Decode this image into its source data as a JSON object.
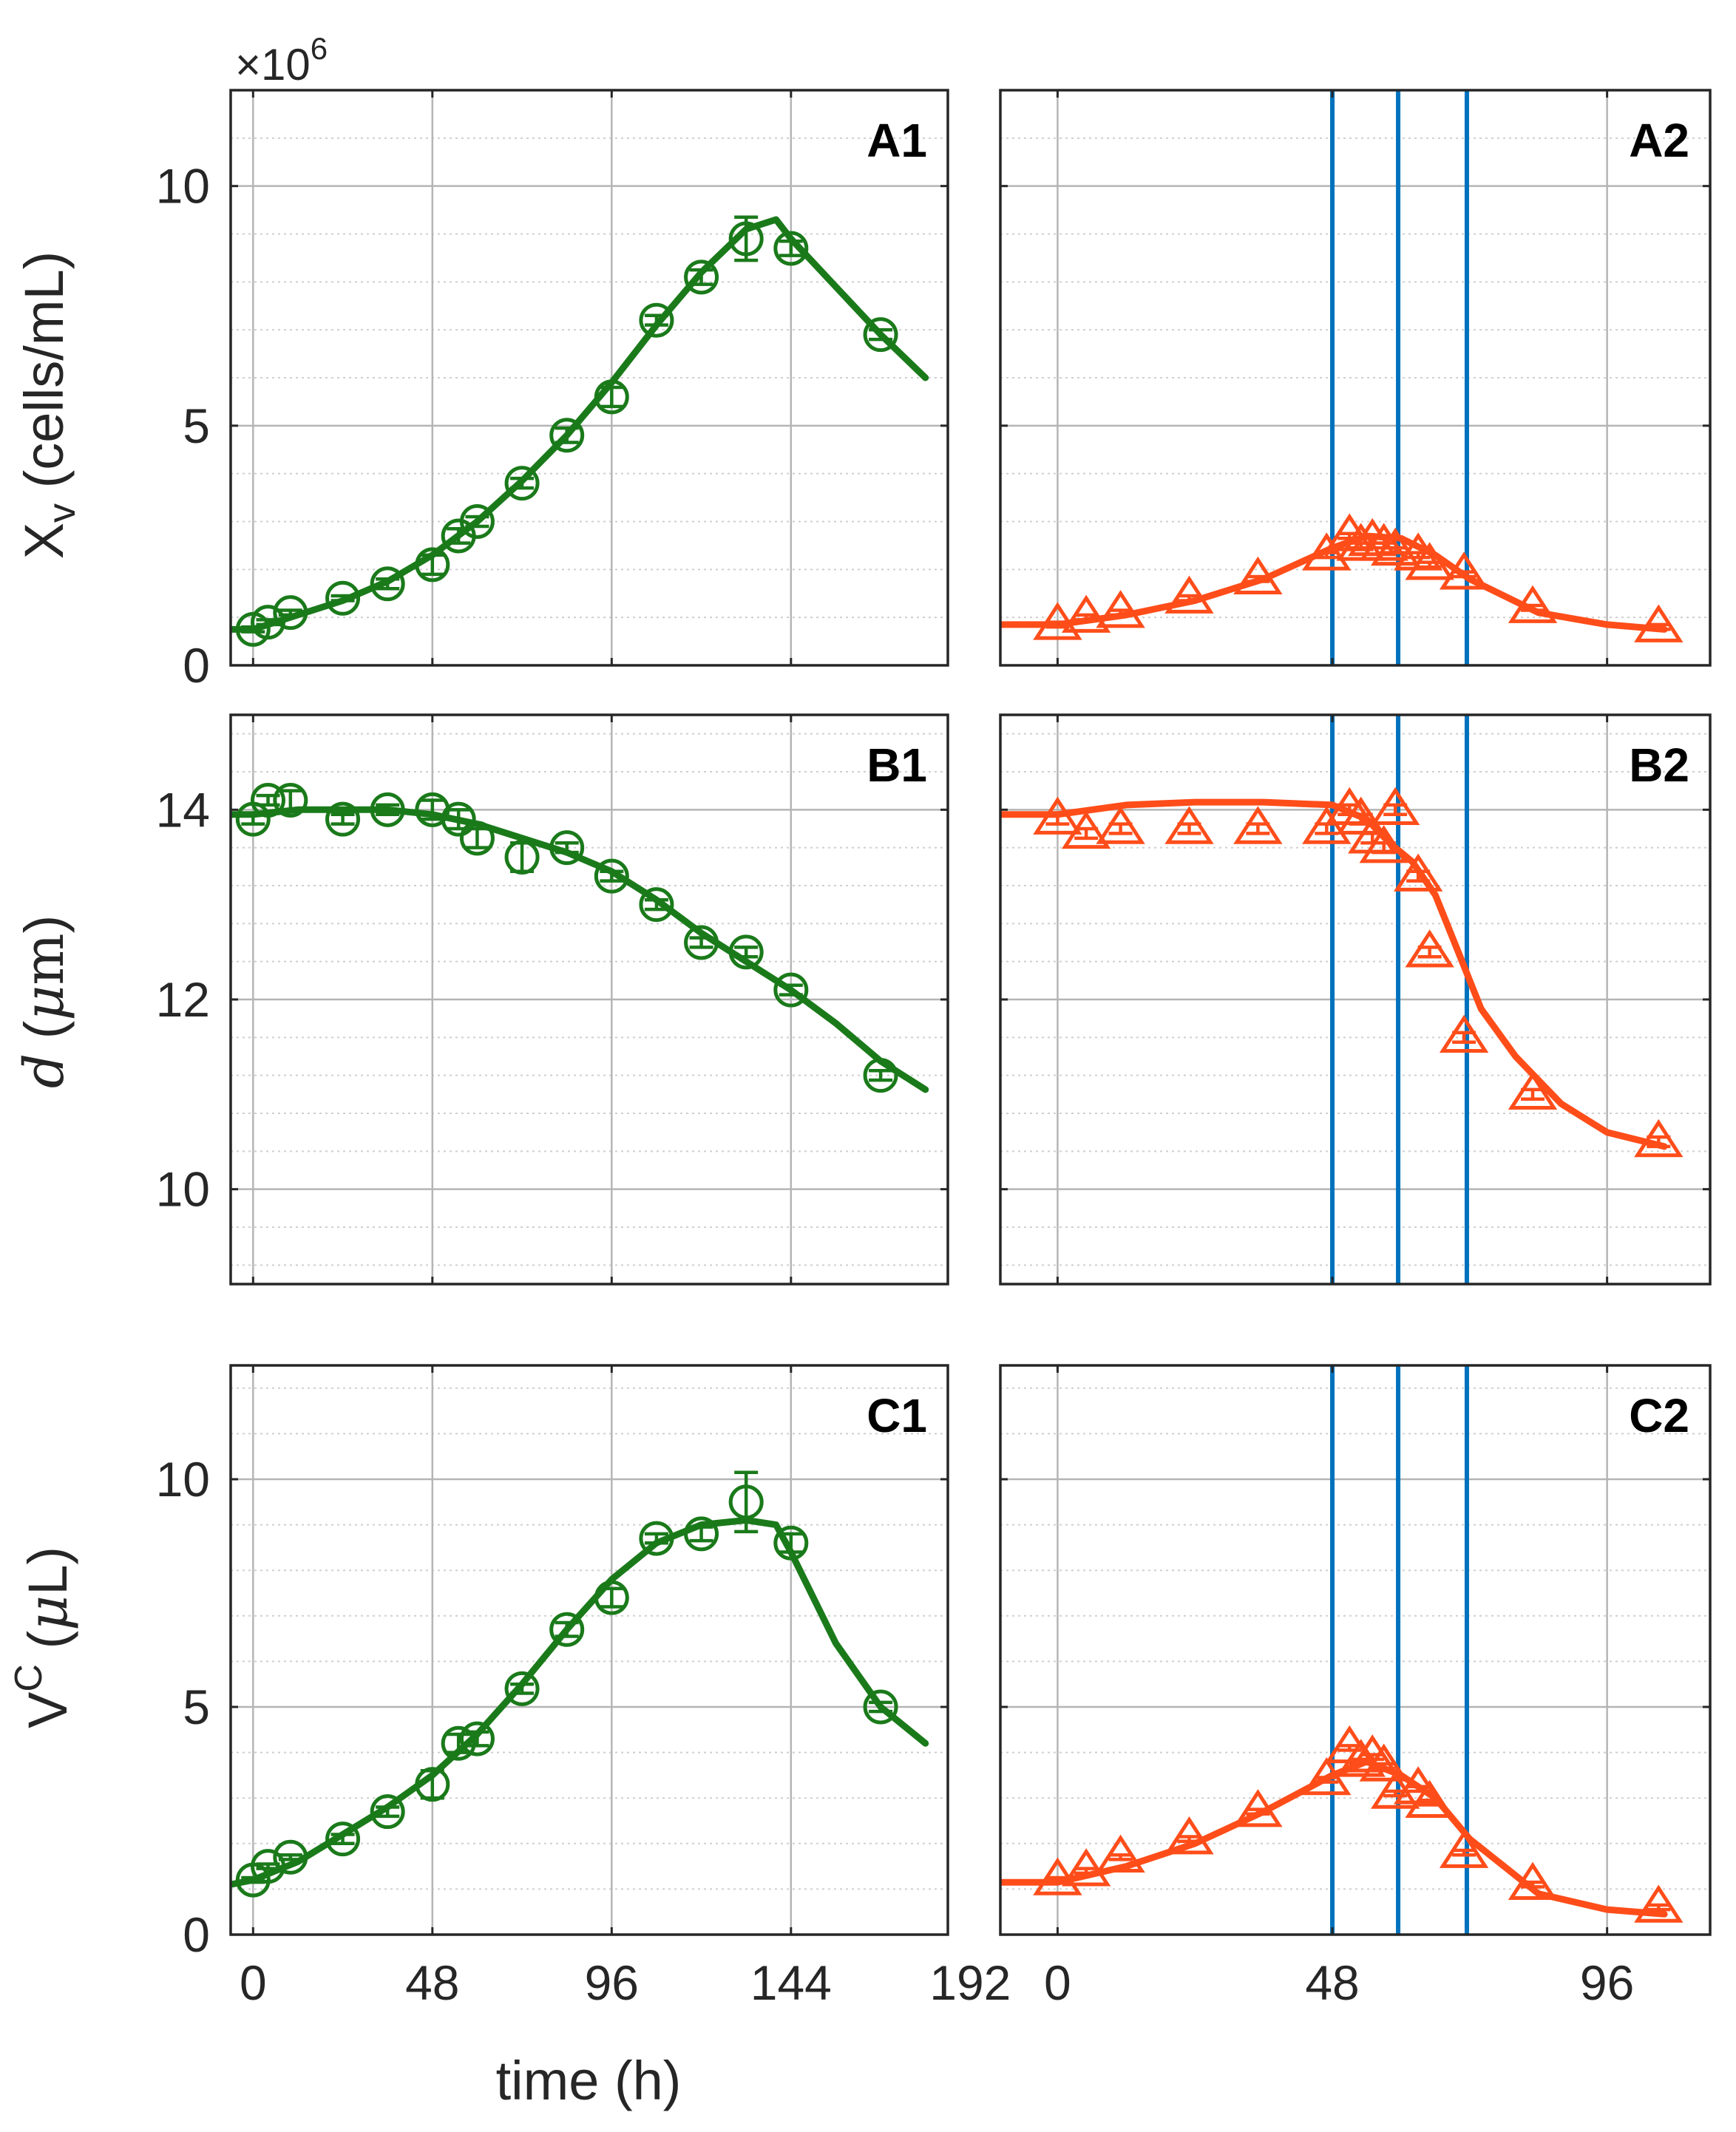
{
  "colors": {
    "fit_left": "#1a7a1a",
    "fit_right": "#ff4d1a",
    "vline": "#0072bd",
    "axis": "#262626",
    "grid_major": "#b5b5b5",
    "grid_minor": "#cfcfcf"
  },
  "chart_data": [
    {
      "type": "line",
      "panel_label": "A1",
      "marker": "circle",
      "ylabel": "X_v (cells/mL)",
      "multiplier": "×10^6",
      "xlim": [
        -6,
        186
      ],
      "ylim": [
        0,
        12
      ],
      "xticks": [
        0,
        48,
        96,
        144,
        192
      ],
      "yticks": [
        0,
        5,
        10
      ],
      "points": {
        "x": [
          0,
          4,
          10,
          24,
          36,
          48,
          55,
          60,
          72,
          84,
          96,
          108,
          120,
          132,
          144,
          168
        ],
        "y": [
          0.75,
          0.9,
          1.1,
          1.4,
          1.7,
          2.1,
          2.7,
          3.0,
          3.8,
          4.8,
          5.6,
          7.2,
          8.1,
          8.9,
          8.7,
          6.9
        ],
        "err": [
          0.05,
          0.05,
          0.05,
          0.05,
          0.1,
          0.2,
          0.15,
          0.1,
          0.1,
          0.15,
          0.2,
          0.1,
          0.15,
          0.45,
          0.15,
          0.1
        ]
      },
      "fit": {
        "x": [
          -6,
          0,
          12,
          24,
          36,
          48,
          60,
          72,
          84,
          96,
          108,
          120,
          132,
          140,
          144,
          156,
          168,
          180
        ],
        "y": [
          0.75,
          0.75,
          1.05,
          1.35,
          1.75,
          2.3,
          3.0,
          3.85,
          4.8,
          5.9,
          7.1,
          8.2,
          9.1,
          9.3,
          8.9,
          7.9,
          6.9,
          6.0
        ]
      }
    },
    {
      "type": "line",
      "panel_label": "A2",
      "marker": "triangle",
      "xlim": [
        -10,
        114
      ],
      "ylim": [
        0,
        12
      ],
      "xticks": [
        0,
        48,
        96
      ],
      "yticks": [
        0,
        5,
        10
      ],
      "vlines": [
        48,
        59.5,
        71.5
      ],
      "points": {
        "x": [
          0,
          5,
          11,
          23,
          35,
          47,
          51,
          53,
          55,
          57,
          59,
          63,
          65,
          71,
          83,
          105
        ],
        "y": [
          0.85,
          1.0,
          1.1,
          1.4,
          1.8,
          2.3,
          2.7,
          2.5,
          2.6,
          2.5,
          2.4,
          2.3,
          2.1,
          1.9,
          1.2,
          0.8
        ],
        "err": [
          0.05,
          0.05,
          0.05,
          0.05,
          0.05,
          0.05,
          0.05,
          0.05,
          0.05,
          0.05,
          0.05,
          0.05,
          0.05,
          0.05,
          0.05,
          0.05
        ]
      },
      "fit": {
        "x": [
          -10,
          0,
          12,
          24,
          36,
          48,
          54,
          60,
          66,
          72,
          84,
          96,
          106
        ],
        "y": [
          0.85,
          0.85,
          1.05,
          1.35,
          1.8,
          2.45,
          2.7,
          2.65,
          2.3,
          1.8,
          1.1,
          0.85,
          0.75
        ]
      }
    },
    {
      "type": "line",
      "panel_label": "B1",
      "marker": "circle",
      "ylabel": "d̅ (μm)",
      "xlim": [
        -6,
        186
      ],
      "ylim": [
        9,
        15
      ],
      "xticks": [
        0,
        48,
        96,
        144,
        192
      ],
      "yticks": [
        10,
        12,
        14
      ],
      "points": {
        "x": [
          0,
          4,
          10,
          24,
          36,
          48,
          55,
          60,
          72,
          84,
          96,
          108,
          120,
          132,
          144,
          168
        ],
        "y": [
          13.9,
          14.1,
          14.1,
          13.9,
          14.0,
          14.0,
          13.9,
          13.7,
          13.5,
          13.6,
          13.3,
          13.0,
          12.6,
          12.5,
          12.1,
          11.2
        ],
        "err": [
          0.05,
          0.05,
          0.1,
          0.05,
          0.05,
          0.1,
          0.1,
          0.1,
          0.15,
          0.05,
          0.05,
          0.05,
          0.05,
          0.05,
          0.05,
          0.05
        ]
      },
      "fit": {
        "x": [
          -6,
          0,
          12,
          24,
          36,
          48,
          60,
          72,
          84,
          96,
          108,
          120,
          132,
          144,
          156,
          168,
          180
        ],
        "y": [
          13.95,
          13.95,
          14.0,
          14.0,
          14.0,
          13.95,
          13.85,
          13.7,
          13.55,
          13.35,
          13.05,
          12.7,
          12.4,
          12.1,
          11.75,
          11.35,
          11.05
        ]
      }
    },
    {
      "type": "line",
      "panel_label": "B2",
      "marker": "triangle",
      "xlim": [
        -10,
        114
      ],
      "ylim": [
        9,
        15
      ],
      "xticks": [
        0,
        48,
        96
      ],
      "yticks": [
        10,
        12,
        14
      ],
      "vlines": [
        48,
        59.5,
        71.5
      ],
      "points": {
        "x": [
          0,
          5,
          11,
          23,
          35,
          47,
          51,
          53,
          55,
          57,
          59,
          63,
          65,
          71,
          83,
          105
        ],
        "y": [
          13.9,
          13.75,
          13.8,
          13.8,
          13.8,
          13.8,
          14.0,
          13.9,
          13.7,
          13.6,
          14.0,
          13.3,
          12.5,
          11.6,
          11.0,
          10.5
        ],
        "err": [
          0.05,
          0.05,
          0.05,
          0.05,
          0.05,
          0.05,
          0.05,
          0.05,
          0.05,
          0.05,
          0.05,
          0.05,
          0.05,
          0.05,
          0.05,
          0.05
        ]
      },
      "fit": {
        "x": [
          -10,
          0,
          12,
          24,
          36,
          48,
          54,
          58,
          62,
          66,
          70,
          74,
          80,
          88,
          96,
          106
        ],
        "y": [
          13.95,
          13.95,
          14.05,
          14.08,
          14.08,
          14.05,
          13.9,
          13.65,
          13.45,
          13.1,
          12.5,
          11.9,
          11.4,
          10.9,
          10.6,
          10.45
        ]
      }
    },
    {
      "type": "line",
      "panel_label": "C1",
      "marker": "circle",
      "ylabel": "V^C (μL)",
      "xlabel": "time (h)",
      "xlim": [
        -6,
        186
      ],
      "ylim": [
        0,
        12.5
      ],
      "xticks": [
        0,
        48,
        96,
        144,
        192
      ],
      "yticks": [
        0,
        5,
        10
      ],
      "points": {
        "x": [
          0,
          4,
          10,
          24,
          36,
          48,
          55,
          60,
          72,
          84,
          96,
          108,
          120,
          132,
          144,
          168
        ],
        "y": [
          1.2,
          1.5,
          1.7,
          2.1,
          2.7,
          3.3,
          4.2,
          4.3,
          5.4,
          6.7,
          7.4,
          8.7,
          8.8,
          9.5,
          8.6,
          5.0
        ],
        "err": [
          0.05,
          0.05,
          0.05,
          0.1,
          0.1,
          0.3,
          0.2,
          0.15,
          0.1,
          0.15,
          0.2,
          0.1,
          0.15,
          0.65,
          0.2,
          0.1
        ]
      },
      "fit": {
        "x": [
          -6,
          0,
          12,
          24,
          36,
          48,
          60,
          72,
          84,
          96,
          108,
          120,
          132,
          140,
          144,
          156,
          168,
          180
        ],
        "y": [
          1.1,
          1.2,
          1.6,
          2.2,
          2.8,
          3.5,
          4.4,
          5.5,
          6.7,
          7.8,
          8.6,
          9.0,
          9.1,
          9.0,
          8.4,
          6.4,
          5.0,
          4.2
        ]
      }
    },
    {
      "type": "line",
      "panel_label": "C2",
      "marker": "triangle",
      "xlabel": "",
      "xlim": [
        -10,
        114
      ],
      "ylim": [
        0,
        12.5
      ],
      "xticks": [
        0,
        48,
        96
      ],
      "yticks": [
        0,
        5,
        10
      ],
      "vlines": [
        48,
        59.5,
        71.5
      ],
      "points": {
        "x": [
          0,
          5,
          11,
          23,
          35,
          47,
          51,
          53,
          55,
          57,
          59,
          63,
          65,
          71,
          83,
          105
        ],
        "y": [
          1.2,
          1.4,
          1.7,
          2.1,
          2.7,
          3.4,
          4.1,
          3.8,
          3.9,
          3.7,
          3.1,
          3.2,
          2.9,
          1.8,
          1.1,
          0.6
        ],
        "err": [
          0.05,
          0.05,
          0.05,
          0.05,
          0.05,
          0.05,
          0.05,
          0.05,
          0.05,
          0.05,
          0.05,
          0.05,
          0.05,
          0.05,
          0.05,
          0.05
        ]
      },
      "fit": {
        "x": [
          -10,
          0,
          12,
          24,
          36,
          48,
          54,
          60,
          66,
          72,
          84,
          96,
          106
        ],
        "y": [
          1.15,
          1.15,
          1.5,
          2.0,
          2.7,
          3.5,
          3.8,
          3.5,
          3.0,
          2.1,
          0.9,
          0.55,
          0.45
        ]
      }
    }
  ]
}
